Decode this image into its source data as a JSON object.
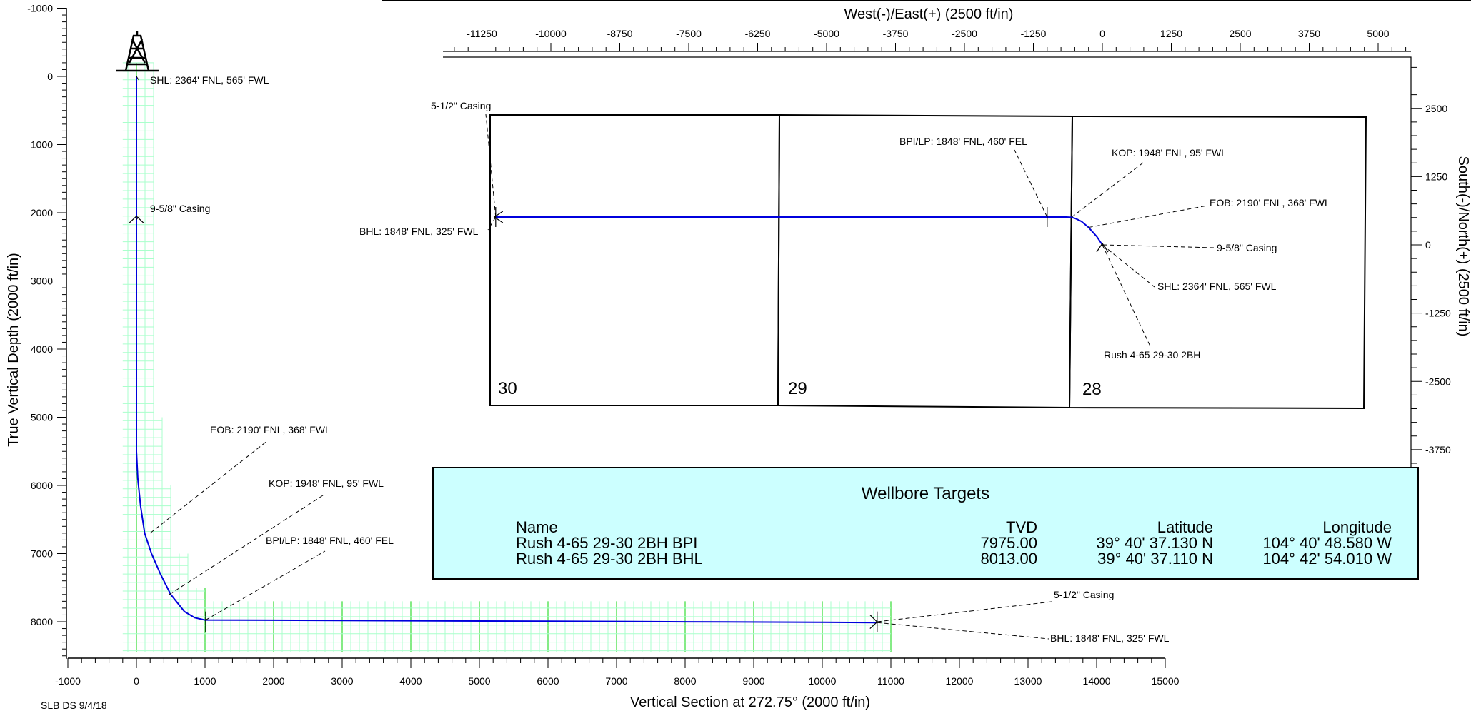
{
  "chart_data": [
    {
      "type": "line",
      "title": "",
      "xlabel": "Vertical Section at 272.75° (2000 ft/in)",
      "ylabel": "True Vertical Depth (2000 ft/in)",
      "xlim": [
        -1000,
        15000
      ],
      "ylim": [
        -1000,
        8500
      ],
      "y_inverted": true,
      "grid": true,
      "x_ticks": [
        "-1000",
        "0",
        "1000",
        "2000",
        "3000",
        "4000",
        "5000",
        "6000",
        "7000",
        "8000",
        "9000",
        "10000",
        "11000",
        "12000",
        "13000",
        "14000",
        "15000"
      ],
      "y_ticks": [
        "-1000",
        "0",
        "1000",
        "2000",
        "3000",
        "4000",
        "5000",
        "6000",
        "7000",
        "8000"
      ],
      "series": [
        {
          "x": [
            0,
            0,
            0,
            0,
            0,
            20,
            60,
            120,
            220,
            350,
            500,
            700,
            850,
            1000,
            2000,
            4000,
            6000,
            8000,
            10000,
            10800
          ],
          "y": [
            0,
            2000,
            4000,
            5000,
            5500,
            5900,
            6300,
            6700,
            7000,
            7300,
            7600,
            7850,
            7940,
            7975,
            7978,
            7985,
            7993,
            8001,
            8008,
            8013
          ]
        }
      ],
      "annotations": [
        {
          "text": "SHL: 2364' FNL, 565' FWL",
          "x": 0,
          "y": 0
        },
        {
          "text": "9-5/8\" Casing",
          "x": 0,
          "y": 2100
        },
        {
          "text": "EOB: 2190' FNL, 368' FWL",
          "x": 200,
          "y": 6700
        },
        {
          "text": "KOP: 1948' FNL, 95' FWL",
          "x": 480,
          "y": 7600
        },
        {
          "text": "BPI/LP: 1848' FNL, 460' FEL",
          "x": 1010,
          "y": 7975
        },
        {
          "text": "5-1/2\" Casing",
          "x": 10800,
          "y": 8000
        },
        {
          "text": "BHL: 1848' FNL, 325' FWL",
          "x": 10800,
          "y": 8013
        }
      ]
    },
    {
      "type": "line",
      "title": "",
      "xlabel": "West(-)/East(+) (2500 ft/in)",
      "ylabel": "South(-)/North(+) (2500 ft/in)",
      "xlim": [
        -12000,
        5700
      ],
      "ylim": [
        -4000,
        3400
      ],
      "grid": false,
      "x_ticks": [
        "-11250",
        "-10000",
        "-8750",
        "-7500",
        "-6250",
        "-5000",
        "-3750",
        "-2500",
        "-1250",
        "0",
        "1250",
        "2500",
        "3750",
        "5000"
      ],
      "y_ticks": [
        "2500",
        "1250",
        "0",
        "-1250",
        "-2500",
        "-3750"
      ],
      "series": [
        {
          "x": [
            0,
            -100,
            -250,
            -380,
            -480,
            -560,
            -650,
            -1000,
            -2000,
            -5000,
            -8000,
            -11000
          ],
          "y": [
            0,
            150,
            320,
            430,
            480,
            505,
            510,
            510,
            510,
            510,
            510,
            510
          ]
        }
      ],
      "sections": [
        "30",
        "29",
        "28"
      ],
      "annotations": [
        {
          "text": "5-1/2\" Casing",
          "x": -11000,
          "y": 510
        },
        {
          "text": "BHL: 1848' FNL, 325' FWL",
          "x": -11000,
          "y": 510
        },
        {
          "text": "BPI/LP: 1848' FNL, 460' FEL",
          "x": -1000,
          "y": 510
        },
        {
          "text": "KOP: 1948' FNL, 95' FWL",
          "x": -560,
          "y": 505
        },
        {
          "text": "EOB: 2190' FNL, 368' FWL",
          "x": -250,
          "y": 320
        },
        {
          "text": "9-5/8\" Casing",
          "x": 0,
          "y": 0
        },
        {
          "text": "SHL: 2364' FNL, 565' FWL",
          "x": 0,
          "y": 0
        },
        {
          "text": "Rush 4-65 29-30 2BH",
          "x": 0,
          "y": 0
        }
      ]
    }
  ],
  "targets": {
    "title": "Wellbore Targets",
    "headers": [
      "Name",
      "TVD",
      "Latitude",
      "Longitude"
    ],
    "rows": [
      [
        "Rush 4-65 29-30 2BH BPI",
        "7975.00",
        "39° 40' 37.130 N",
        "104° 40' 48.580 W"
      ],
      [
        "Rush 4-65 29-30 2BH BHL",
        "8013.00",
        "39° 40' 37.110 N",
        "104° 42' 54.010 W"
      ]
    ]
  },
  "footer": "SLB DS 9/4/18",
  "colors": {
    "wellpath": "#0000dd",
    "grid": "#33dd33",
    "grid_minor": "#aaffcc",
    "table_bg": "#ccffff"
  }
}
